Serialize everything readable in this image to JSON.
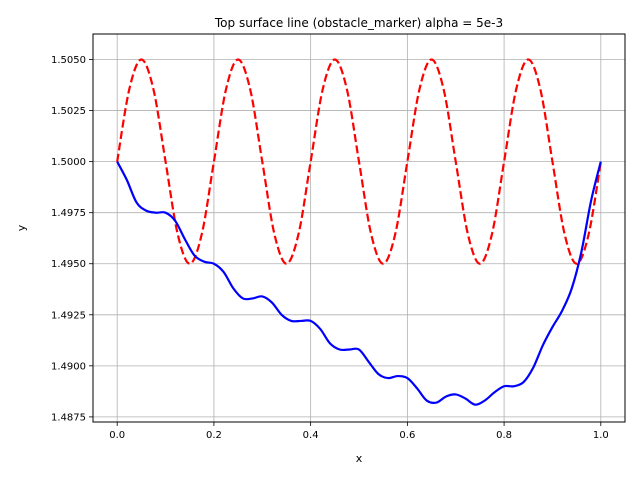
{
  "chart_data": {
    "type": "line",
    "title": "Top surface line (obstacle_marker) alpha = 5e-3",
    "xlabel": "x",
    "ylabel": "y",
    "xlim": [
      -0.05,
      1.05
    ],
    "ylim": [
      1.48725,
      1.50625
    ],
    "grid": true,
    "xticks": [
      0.0,
      0.2,
      0.4,
      0.6,
      0.8,
      1.0
    ],
    "xtick_labels": [
      "0.0",
      "0.2",
      "0.4",
      "0.6",
      "0.8",
      "1.0"
    ],
    "yticks": [
      1.4875,
      1.49,
      1.4925,
      1.495,
      1.4975,
      1.5,
      1.5025,
      1.505
    ],
    "ytick_labels": [
      "1.4875",
      "1.4900",
      "1.4925",
      "1.4950",
      "1.4975",
      "1.5000",
      "1.5025",
      "1.5050"
    ],
    "series": [
      {
        "color": "#ff0000",
        "style": "dashed",
        "x": [
          0.0,
          0.025,
          0.05,
          0.075,
          0.1,
          0.125,
          0.15,
          0.175,
          0.2,
          0.225,
          0.25,
          0.275,
          0.3,
          0.325,
          0.35,
          0.375,
          0.4,
          0.425,
          0.45,
          0.475,
          0.5,
          0.525,
          0.55,
          0.575,
          0.6,
          0.625,
          0.65,
          0.675,
          0.7,
          0.725,
          0.75,
          0.775,
          0.8,
          0.825,
          0.85,
          0.875,
          0.9,
          0.925,
          0.95,
          0.975,
          1.0
        ],
        "y": [
          1.5,
          1.50354,
          1.505,
          1.50354,
          1.5,
          1.49646,
          1.495,
          1.49646,
          1.5,
          1.50354,
          1.505,
          1.50354,
          1.5,
          1.49646,
          1.495,
          1.49646,
          1.5,
          1.50354,
          1.505,
          1.50354,
          1.5,
          1.49646,
          1.495,
          1.49646,
          1.5,
          1.50354,
          1.505,
          1.50354,
          1.5,
          1.49646,
          1.495,
          1.49646,
          1.5,
          1.50354,
          1.505,
          1.50354,
          1.5,
          1.49646,
          1.495,
          1.49646,
          1.5
        ]
      },
      {
        "color": "#0000ff",
        "style": "solid",
        "x": [
          0.0,
          0.02,
          0.04,
          0.06,
          0.08,
          0.1,
          0.12,
          0.14,
          0.16,
          0.18,
          0.2,
          0.22,
          0.24,
          0.26,
          0.28,
          0.3,
          0.32,
          0.34,
          0.36,
          0.38,
          0.4,
          0.42,
          0.44,
          0.46,
          0.48,
          0.5,
          0.52,
          0.54,
          0.56,
          0.58,
          0.6,
          0.62,
          0.64,
          0.66,
          0.68,
          0.7,
          0.72,
          0.74,
          0.76,
          0.78,
          0.8,
          0.82,
          0.84,
          0.86,
          0.88,
          0.9,
          0.92,
          0.94,
          0.96,
          0.98,
          1.0
        ],
        "y": [
          1.5,
          1.4991,
          1.498,
          1.4976,
          1.4975,
          1.4975,
          1.4971,
          1.4962,
          1.4954,
          1.4951,
          1.495,
          1.4946,
          1.4938,
          1.4933,
          1.4933,
          1.4934,
          1.4931,
          1.4925,
          1.4922,
          1.4922,
          1.4922,
          1.4918,
          1.4911,
          1.4908,
          1.4908,
          1.4908,
          1.4902,
          1.4896,
          1.4894,
          1.4895,
          1.4894,
          1.4889,
          1.4883,
          1.4882,
          1.4885,
          1.4886,
          1.4884,
          1.4881,
          1.4883,
          1.4887,
          1.489,
          1.489,
          1.4892,
          1.4899,
          1.491,
          1.4919,
          1.4927,
          1.4938,
          1.4956,
          1.4981,
          1.5
        ]
      }
    ]
  }
}
